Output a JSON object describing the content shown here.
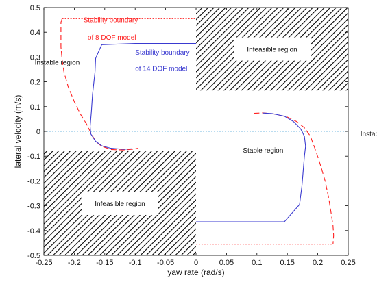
{
  "chart_data": {
    "type": "line",
    "title": "",
    "xlabel": "yaw rate (rad/s)",
    "ylabel": "lateral velocity (m/s)",
    "xlim": [
      -0.25,
      0.25
    ],
    "ylim": [
      -0.5,
      0.5
    ],
    "xticks": [
      -0.25,
      -0.2,
      -0.15,
      -0.1,
      -0.05,
      0,
      0.05,
      0.1,
      0.15,
      0.2,
      0.25
    ],
    "yticks": [
      0.5,
      0.4,
      0.3,
      0.2,
      0.1,
      0,
      -0.1,
      -0.2,
      -0.3,
      -0.4,
      -0.5
    ],
    "xtick_labels": [
      "-0.25",
      "-0.2",
      "-0.15",
      "-0.1",
      "-0.05",
      "0",
      "0.05",
      "0.1",
      "0.15",
      "0.2",
      "0.25"
    ],
    "ytick_labels": [
      "0.5",
      "0.4",
      "0.3",
      "0.2",
      "0.1",
      "0",
      "-0.1",
      "-0.2",
      "-0.3",
      "-0.4",
      "-0.5"
    ],
    "grid": false,
    "colors": {
      "red": "#ff2020",
      "blue": "#3a3ad0",
      "zero": "#4aa3d6",
      "hatch": "#000000"
    },
    "series": [
      {
        "color": "#ff2020",
        "style": "dashed",
        "points": [
          [
            -0.22,
            0.455
          ],
          [
            -0.222,
            0.44
          ],
          [
            -0.222,
            0.4
          ],
          [
            -0.222,
            0.34
          ],
          [
            -0.22,
            0.29
          ],
          [
            -0.217,
            0.24
          ],
          [
            -0.21,
            0.18
          ],
          [
            -0.2,
            0.12
          ],
          [
            -0.19,
            0.07
          ],
          [
            -0.18,
            0.03
          ],
          [
            -0.172,
            -0.01
          ],
          [
            -0.165,
            -0.04
          ],
          [
            -0.155,
            -0.06
          ],
          [
            -0.14,
            -0.073
          ],
          [
            -0.12,
            -0.075
          ],
          [
            -0.105,
            -0.072
          ],
          [
            -0.095,
            -0.068
          ]
        ]
      },
      {
        "color": "#ff2020",
        "style": "dotted",
        "points": [
          [
            -0.22,
            0.455
          ],
          [
            0.0,
            0.455
          ]
        ]
      },
      {
        "color": "#ff2020",
        "style": "dashed",
        "points": [
          [
            0.095,
            0.073
          ],
          [
            0.11,
            0.075
          ],
          [
            0.13,
            0.07
          ],
          [
            0.15,
            0.058
          ],
          [
            0.165,
            0.04
          ],
          [
            0.178,
            0.015
          ],
          [
            0.188,
            -0.02
          ],
          [
            0.197,
            -0.08
          ],
          [
            0.205,
            -0.14
          ],
          [
            0.212,
            -0.2
          ],
          [
            0.218,
            -0.27
          ],
          [
            0.222,
            -0.33
          ],
          [
            0.225,
            -0.38
          ],
          [
            0.226,
            -0.42
          ],
          [
            0.225,
            -0.455
          ]
        ]
      },
      {
        "color": "#ff2020",
        "style": "dotted",
        "points": [
          [
            0.0,
            -0.455
          ],
          [
            0.225,
            -0.455
          ]
        ]
      },
      {
        "color": "#3a3ad0",
        "style": "solid",
        "points": [
          [
            -0.0,
            0.355
          ],
          [
            -0.1,
            0.355
          ],
          [
            -0.155,
            0.35
          ],
          [
            -0.165,
            0.295
          ],
          [
            -0.166,
            0.24
          ],
          [
            -0.17,
            0.15
          ],
          [
            -0.172,
            0.08
          ],
          [
            -0.174,
            0.02
          ],
          [
            -0.173,
            -0.01
          ],
          [
            -0.165,
            -0.04
          ],
          [
            -0.155,
            -0.058
          ],
          [
            -0.14,
            -0.068
          ],
          [
            -0.12,
            -0.072
          ],
          [
            -0.105,
            -0.07
          ]
        ]
      },
      {
        "color": "#3a3ad0",
        "style": "solid",
        "points": [
          [
            0.0,
            -0.365
          ],
          [
            0.145,
            -0.365
          ],
          [
            0.17,
            -0.295
          ],
          [
            0.174,
            -0.22
          ],
          [
            0.176,
            -0.16
          ],
          [
            0.178,
            -0.1
          ],
          [
            0.18,
            -0.06
          ],
          [
            0.178,
            -0.02
          ],
          [
            0.172,
            0.01
          ],
          [
            0.16,
            0.04
          ],
          [
            0.145,
            0.062
          ],
          [
            0.125,
            0.072
          ],
          [
            0.11,
            0.074
          ]
        ]
      }
    ],
    "regions": [
      {
        "x": [
          0.0,
          0.25
        ],
        "y": [
          0.165,
          0.5
        ],
        "label": "Infeasible region"
      },
      {
        "x": [
          -0.25,
          0.0
        ],
        "y": [
          -0.5,
          -0.08
        ],
        "label": "Infeasible region"
      }
    ],
    "annotations": [
      {
        "text": "Stability boundary",
        "color": "#ff2020",
        "x": -0.185,
        "y": 0.44
      },
      {
        "text": "of 8 DOF model",
        "color": "#ff2020",
        "x": -0.178,
        "y": 0.37
      },
      {
        "text": "Stability boundary",
        "color": "#3a3ad0",
        "x": -0.1,
        "y": 0.31
      },
      {
        "text": "of 14 DOF model",
        "color": "#3a3ad0",
        "x": -0.1,
        "y": 0.245
      },
      {
        "text": "Instable region",
        "color": "#111111",
        "x": -0.265,
        "y": 0.27
      },
      {
        "text": "Instable region",
        "color": "#111111",
        "x": 0.27,
        "y": -0.02
      },
      {
        "text": "Stable region",
        "color": "#111111",
        "x": 0.077,
        "y": -0.085
      }
    ]
  }
}
